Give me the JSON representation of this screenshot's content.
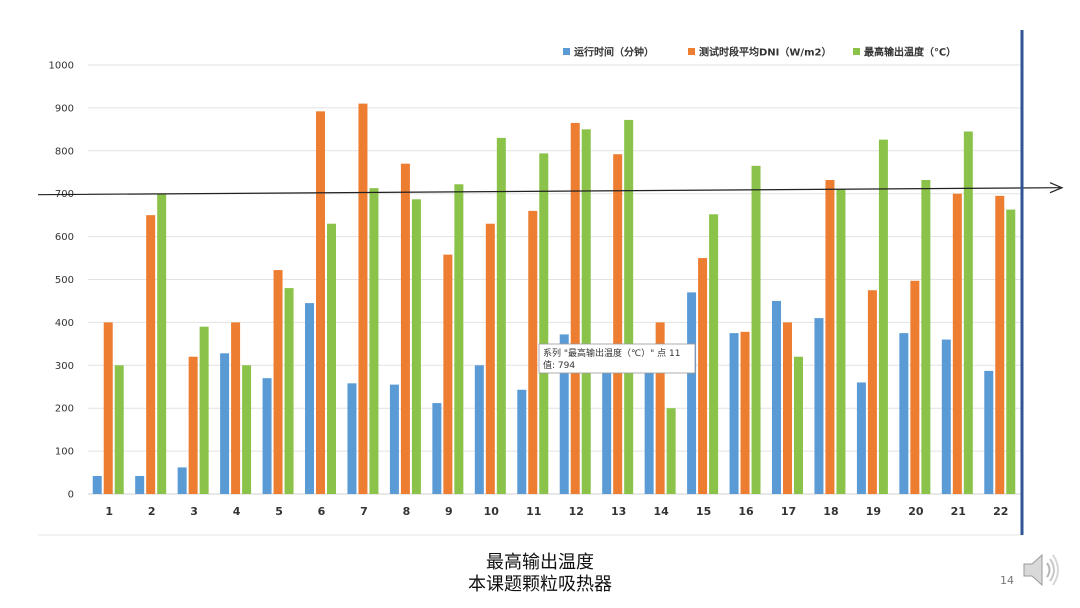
{
  "chart_data": {
    "type": "bar",
    "categories": [
      "1",
      "2",
      "3",
      "4",
      "5",
      "6",
      "7",
      "8",
      "9",
      "10",
      "11",
      "12",
      "13",
      "14",
      "15",
      "16",
      "17",
      "18",
      "19",
      "20",
      "21",
      "22"
    ],
    "series": [
      {
        "name": "运行时间（分钟）",
        "color": "#5B9BD5",
        "values": [
          42,
          42,
          62,
          328,
          270,
          445,
          258,
          255,
          212,
          300,
          243,
          372,
          285,
          290,
          470,
          375,
          450,
          410,
          260,
          375,
          360,
          287
        ]
      },
      {
        "name": "测试时段平均DNI（W/m2）",
        "color": "#ED7D31",
        "values": [
          400,
          650,
          320,
          400,
          522,
          892,
          910,
          770,
          558,
          630,
          660,
          865,
          792,
          400,
          550,
          378,
          400,
          732,
          475,
          497,
          700,
          695
        ]
      },
      {
        "name": "最高输出温度（℃）",
        "color": "#8BC34A",
        "values": [
          300,
          700,
          390,
          300,
          480,
          630,
          713,
          687,
          722,
          830,
          794,
          850,
          872,
          200,
          652,
          765,
          320,
          710,
          826,
          732,
          845,
          663
        ]
      }
    ],
    "ylim": [
      0,
      1000
    ],
    "yticks": [
      0,
      100,
      200,
      300,
      400,
      500,
      600,
      700,
      800,
      900,
      1000
    ],
    "reference_line": 700,
    "grid": true,
    "legend_position": "top-right",
    "tooltip": {
      "line1": "系列 \"最高输出温度（℃）\" 点 11",
      "line2": "值: 794"
    }
  },
  "caption": {
    "line1": "最高输出温度",
    "line2": "本课题颗粒吸热器"
  },
  "page_number": "14",
  "icons": {
    "audio": "speaker-icon"
  }
}
